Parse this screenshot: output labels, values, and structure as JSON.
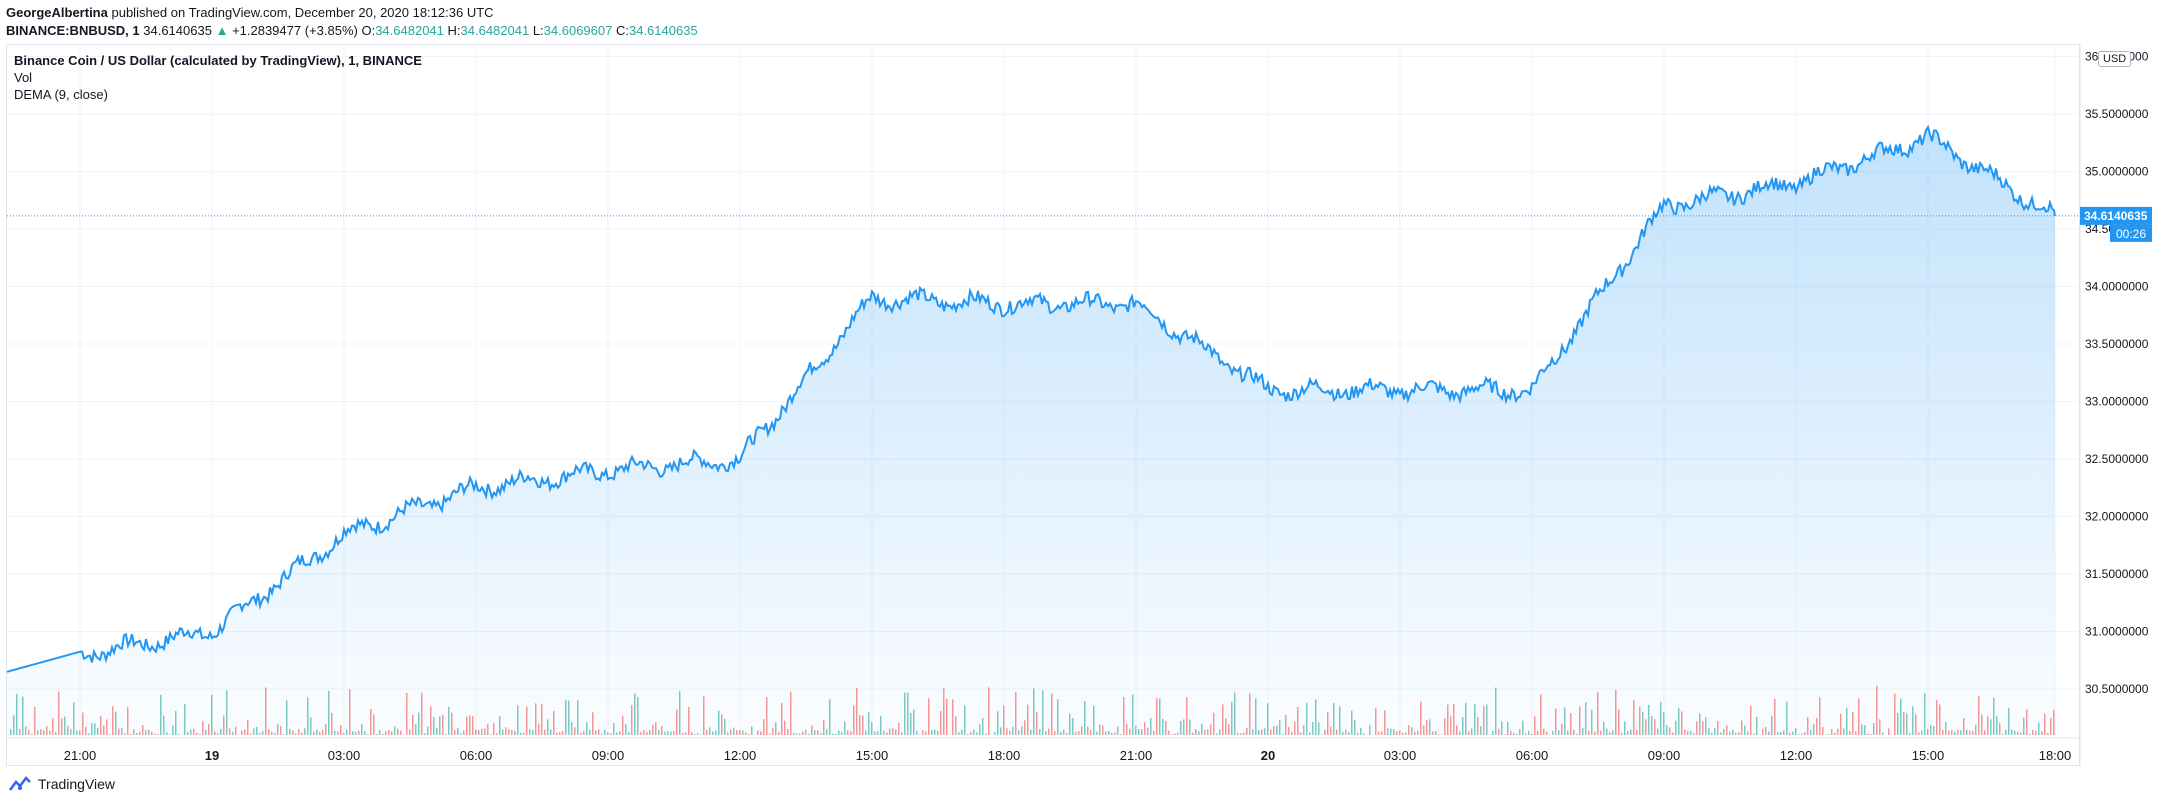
{
  "header": {
    "author": "GeorgeAlbertina",
    "published": "published on TradingView.com, December 20, 2020 18:12:36 UTC",
    "symbol": "BINANCE:BNBUSD, 1",
    "last": "34.6140635",
    "change": "+1.2839477 (+3.85%)",
    "open_label": "O:",
    "open": "34.6482041",
    "high_label": "H:",
    "high": "34.6482041",
    "low_label": "L:",
    "low": "34.6069607",
    "close_label": "C:",
    "close": "34.6140635"
  },
  "legend": {
    "title": "Binance Coin / US Dollar (calculated by TradingView), 1, BINANCE",
    "vol": "Vol",
    "dema": "DEMA (9, close)"
  },
  "currency": "USD",
  "price_tag": "34.6140635",
  "countdown": "00:26",
  "footer": {
    "brand": "TradingView"
  },
  "colors": {
    "line": "#2196f3",
    "vol_up": "#26a69a",
    "vol_down": "#ef5350",
    "grid": "#f0f3fa"
  },
  "chart_data": {
    "type": "area",
    "y_tick_labels": [
      "30.5000000",
      "31.0000000",
      "31.5000000",
      "32.0000000",
      "32.5000000",
      "33.0000000",
      "33.5000000",
      "34.0000000",
      "34.5000000",
      "35.0000000",
      "35.5000000",
      "36.0000000"
    ],
    "ylim": [
      30.1,
      36.1
    ],
    "x_tick_labels": [
      "21:00",
      "19",
      "03:00",
      "06:00",
      "09:00",
      "12:00",
      "15:00",
      "18:00",
      "21:00",
      "20",
      "03:00",
      "06:00",
      "09:00",
      "12:00",
      "15:00",
      "18:00"
    ],
    "x": [
      "21:00",
      "19",
      "03:00",
      "06:00",
      "09:00",
      "12:00",
      "15:00",
      "18:00",
      "21:00",
      "20",
      "03:00",
      "06:00",
      "09:00",
      "12:00",
      "15:00",
      "18:00"
    ],
    "values": [
      30.8,
      31.0,
      31.85,
      32.25,
      32.4,
      32.5,
      33.9,
      33.85,
      33.85,
      33.1,
      33.1,
      33.1,
      34.7,
      34.9,
      35.3,
      34.61
    ],
    "last_value": 34.6140635,
    "grid": true
  }
}
